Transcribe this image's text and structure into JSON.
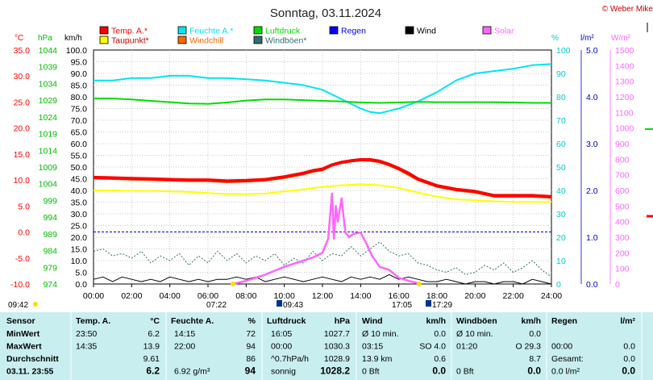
{
  "header": {
    "title": "Sonntag, 03.11.2024",
    "copyright": "© Weber Mike"
  },
  "legend": [
    {
      "label": "Temp. A.*",
      "color": "#ff0000"
    },
    {
      "label": "Feuchte A.*",
      "color": "#00e5ee"
    },
    {
      "label": "Luftdruck",
      "color": "#00dd00"
    },
    {
      "label": "Regen",
      "color": "#0000ff"
    },
    {
      "label": "Wind",
      "color": "#000000"
    },
    {
      "label": "Solar",
      "color": "#ff66ff"
    },
    {
      "label": "Taupunkt*",
      "color": "#ffff00"
    },
    {
      "label": "Windchill",
      "color": "#ff6600"
    },
    {
      "label": "Windböen*",
      "color": "#2f6f6f"
    }
  ],
  "axis_units": {
    "temp": "°C",
    "pressure": "hPa",
    "wind": "km/h",
    "humidity": "%",
    "rain": "l/m²",
    "solar": "W/m²"
  },
  "markers": {
    "sunrise_left": "09:42",
    "sunrise": "07:22",
    "solar_start": "09:43",
    "sunset": "17:05",
    "solar_end": "17:29"
  },
  "chart_data": {
    "type": "line",
    "title": "Sonntag, 03.11.2024",
    "x_ticks": [
      "00:00",
      "02:00",
      "04:00",
      "06:00",
      "08:00",
      "10:00",
      "12:00",
      "14:00",
      "16:00",
      "18:00",
      "20:00",
      "22:00",
      "24:00"
    ],
    "x_range_hours": [
      0,
      24
    ],
    "axes": {
      "temp": {
        "unit": "°C",
        "range": [
          -10,
          35
        ],
        "ticks": [
          "35.0",
          "30.0",
          "25.0",
          "20.0",
          "15.0",
          "10.0",
          "5.0",
          "0.0",
          "-5.0",
          "-10.0"
        ]
      },
      "pressure": {
        "unit": "hPa",
        "range": [
          974,
          1044
        ],
        "ticks": [
          "1044",
          "1039",
          "1034",
          "1029",
          "1024",
          "1019",
          "1014",
          "1009",
          "1004",
          "999",
          "994",
          "989",
          "984",
          "979",
          "974"
        ]
      },
      "wind": {
        "unit": "km/h",
        "range": [
          0,
          100
        ],
        "ticks": [
          "100.0",
          "95.0",
          "90.0",
          "85.0",
          "80.0",
          "75.0",
          "70.0",
          "65.0",
          "60.0",
          "55.0",
          "50.0",
          "45.0",
          "40.0",
          "35.0",
          "30.0",
          "25.0",
          "20.0",
          "15.0",
          "10.0",
          "5.0",
          "0.0"
        ]
      },
      "humidity": {
        "unit": "%",
        "range": [
          0,
          100
        ],
        "ticks": [
          "100",
          "90",
          "80",
          "70",
          "60",
          "50",
          "40",
          "30",
          "20",
          "10",
          "0"
        ]
      },
      "rain": {
        "unit": "l/m²",
        "range": [
          0,
          5
        ],
        "ticks": [
          "5.0",
          "4.0",
          "3.0",
          "2.0",
          "1.0",
          "0.0"
        ]
      },
      "solar": {
        "unit": "W/m²",
        "range": [
          0,
          1500
        ],
        "ticks": [
          "1500",
          "1400",
          "1300",
          "1200",
          "1100",
          "1000",
          "900",
          "800",
          "700",
          "600",
          "500",
          "400",
          "300",
          "200",
          "100",
          "0"
        ]
      }
    },
    "series": [
      {
        "name": "Feuchte A.*",
        "axis": "humidity",
        "color": "#00e5ee",
        "x": [
          0,
          1,
          2,
          3,
          4,
          5,
          6,
          7,
          8,
          9,
          10,
          11,
          12,
          13,
          14,
          14.5,
          15,
          16,
          17,
          18,
          19,
          20,
          21,
          22,
          23,
          24
        ],
        "y": [
          87,
          87,
          88,
          88,
          89,
          89,
          88,
          88,
          87.5,
          87,
          86,
          85,
          83,
          79,
          75,
          73.5,
          73,
          75,
          78,
          82,
          87,
          90,
          91,
          92,
          93.5,
          94
        ]
      },
      {
        "name": "Luftdruck",
        "axis": "pressure",
        "color": "#00dd00",
        "x": [
          0,
          1,
          2,
          3,
          4,
          5,
          6,
          7,
          8,
          9,
          10,
          11,
          12,
          13,
          14,
          15,
          16,
          17,
          18,
          19,
          20,
          21,
          22,
          23,
          24
        ],
        "y": [
          1029.5,
          1029.5,
          1029.2,
          1028.8,
          1028.4,
          1028.0,
          1027.9,
          1028.3,
          1028.9,
          1029.2,
          1029.2,
          1029.0,
          1028.8,
          1028.6,
          1028.3,
          1028.2,
          1028.3,
          1028.5,
          1028.4,
          1028.4,
          1028.4,
          1028.4,
          1028.3,
          1028.2,
          1028.2
        ]
      },
      {
        "name": "Taupunkt*",
        "axis": "temp",
        "color": "#ffff00",
        "x": [
          0,
          1,
          2,
          3,
          4,
          5,
          6,
          7,
          8,
          9,
          10,
          11,
          12,
          13,
          14,
          15,
          16,
          17,
          18,
          19,
          20,
          21,
          22,
          23,
          24
        ],
        "y": [
          8.0,
          8.0,
          7.9,
          7.9,
          7.8,
          7.7,
          7.5,
          7.3,
          7.3,
          7.4,
          7.8,
          8.2,
          8.7,
          9.0,
          9.2,
          9.0,
          8.5,
          7.6,
          6.8,
          6.3,
          6.1,
          5.9,
          5.8,
          5.8,
          5.8
        ]
      },
      {
        "name": "Temp. A.*",
        "axis": "temp",
        "color": "#ff0000",
        "x": [
          0,
          1,
          2,
          3,
          4,
          5,
          6,
          7,
          8,
          9,
          10,
          11,
          11.5,
          12,
          12.5,
          13,
          13.5,
          14,
          14.5,
          15,
          15.5,
          16,
          16.5,
          17,
          18,
          19,
          20,
          21,
          22,
          23,
          24
        ],
        "y": [
          10.5,
          10.4,
          10.3,
          10.2,
          10.1,
          10.0,
          10.0,
          9.8,
          9.9,
          10.1,
          10.6,
          11.3,
          11.8,
          12.1,
          12.9,
          13.4,
          13.7,
          13.9,
          13.9,
          13.6,
          13.0,
          12.2,
          11.3,
          10.2,
          8.9,
          8.2,
          7.8,
          7.0,
          7.0,
          7.0,
          6.8
        ]
      },
      {
        "name": "Windchill",
        "axis": "temp",
        "color": "#ff6600",
        "x": [
          0,
          1,
          2,
          3,
          4,
          5,
          6,
          7,
          8,
          9,
          10,
          11,
          11.5,
          12,
          12.5,
          13,
          13.5,
          14,
          14.5,
          15,
          15.5,
          16,
          16.5,
          17,
          18,
          19,
          20,
          21,
          22,
          23,
          24
        ],
        "y": [
          10.3,
          10.2,
          10.1,
          10.0,
          9.9,
          9.8,
          9.8,
          9.6,
          9.7,
          9.9,
          10.4,
          11.1,
          11.6,
          11.9,
          12.8,
          13.3,
          13.6,
          13.8,
          13.7,
          13.4,
          12.8,
          12.0,
          11.0,
          10.0,
          8.7,
          8.0,
          7.6,
          6.8,
          6.8,
          6.8,
          6.6
        ]
      },
      {
        "name": "Solar",
        "axis": "solar",
        "color": "#ff66ff",
        "x": [
          7.3,
          8,
          9,
          10,
          11,
          11.5,
          12,
          12.3,
          12.5,
          12.6,
          12.7,
          12.8,
          13.0,
          13.2,
          13.4,
          13.6,
          14.0,
          14.3,
          14.6,
          15,
          15.5,
          16,
          16.5,
          17,
          17.2
        ],
        "y": [
          0,
          20,
          60,
          110,
          150,
          170,
          200,
          290,
          580,
          290,
          500,
          400,
          550,
          330,
          300,
          320,
          330,
          260,
          180,
          110,
          90,
          40,
          20,
          5,
          0
        ]
      },
      {
        "name": "Windböen*",
        "axis": "wind",
        "color": "#2f6f6f",
        "x": [
          0,
          0.5,
          1,
          1.5,
          2,
          2.5,
          3,
          3.5,
          4,
          4.5,
          5,
          5.5,
          6,
          6.5,
          7,
          7.5,
          8,
          8.5,
          9,
          9.5,
          10,
          10.5,
          11,
          11.5,
          12,
          12.5,
          13,
          13.5,
          14,
          14.5,
          15,
          15.5,
          16,
          16.5,
          17,
          17.5,
          18,
          18.5,
          19,
          19.5,
          20,
          20.5,
          21,
          21.5,
          22,
          22.5,
          23,
          23.5,
          24
        ],
        "y": [
          14,
          15,
          12,
          13,
          11,
          14,
          9,
          12,
          10,
          13,
          8,
          12,
          9,
          14,
          10,
          13,
          9,
          12,
          10,
          13,
          8,
          11,
          9,
          14,
          10,
          13,
          12,
          16,
          12,
          15,
          18,
          14,
          12,
          13,
          9,
          8,
          6,
          5,
          7,
          4,
          5,
          8,
          6,
          9,
          5,
          7,
          10,
          6,
          3
        ]
      },
      {
        "name": "Wind",
        "axis": "wind",
        "color": "#000000",
        "x": [
          0,
          0.5,
          1,
          1.5,
          2,
          2.5,
          3,
          3.5,
          4,
          4.5,
          5,
          5.5,
          6,
          6.5,
          7,
          7.5,
          8,
          8.5,
          9,
          9.5,
          10,
          10.5,
          11,
          11.5,
          12,
          12.5,
          13,
          13.5,
          14,
          14.5,
          15,
          15.5,
          16,
          16.5,
          17,
          17.5,
          18,
          18.5,
          19,
          19.5,
          20,
          20.5,
          21,
          21.5,
          22,
          22.5,
          23,
          23.5,
          24
        ],
        "y": [
          2,
          3,
          1,
          3,
          2,
          1,
          2,
          1,
          3,
          2,
          1,
          2,
          1,
          2,
          2,
          3,
          2,
          3,
          1,
          2,
          3,
          2,
          1,
          2,
          3,
          2,
          1,
          3,
          2,
          3,
          2,
          4,
          2,
          3,
          2,
          1,
          1,
          2,
          1,
          0,
          1,
          1,
          0,
          1,
          1,
          0,
          2,
          1,
          0
        ]
      }
    ]
  },
  "stats": {
    "col_labels": {
      "sensor": "Sensor",
      "temp": "Temp. A.",
      "temp_unit": "°C",
      "hum": "Feuchte A.",
      "hum_unit": "%",
      "press": "Luftdruck",
      "press_unit": "hPa",
      "wind": "Wind",
      "wind_unit": "km/h",
      "gust": "Windböen",
      "gust_unit": "km/h",
      "rain": "Regen",
      "rain_unit": "l/m²"
    },
    "rows": [
      {
        "label": "MinWert",
        "temp_time": "23:50",
        "temp": "6.2",
        "hum_time": "14:15",
        "hum": "72",
        "press_time": "16:05",
        "press": "1027.7",
        "wind_lbl": "Ø 10 min.",
        "wind": "0.0",
        "gust_lbl": "Ø 10 min.",
        "gust": "0.0",
        "rain_time": "",
        "rain": ""
      },
      {
        "label": "MaxWert",
        "temp_time": "14:35",
        "temp": "13.9",
        "hum_time": "22:00",
        "hum": "94",
        "press_time": "00:00",
        "press": "1030.3",
        "wind_lbl": "03:15",
        "wind": "SO 4.0",
        "gust_lbl": "01:20",
        "gust": "O 29.3",
        "rain_time": "00:00",
        "rain": "0.0"
      },
      {
        "label": "Durchschnitt",
        "temp_time": "",
        "temp": "9.61",
        "hum_time": "",
        "hum": "86",
        "press_time": "^0.7hPa/h",
        "press": "1028.9",
        "wind_lbl": "13.9 km",
        "wind": "0.6",
        "gust_lbl": "",
        "gust": "8.7",
        "rain_time": "Gesamt:",
        "rain": "0.0"
      },
      {
        "label": "03.11. 23:55",
        "temp_time": "",
        "temp": "6.2",
        "hum_time": "6.92 g/m³",
        "hum": "94",
        "press_time": "sonnig",
        "press": "1028.2",
        "wind_lbl": "0 Bft",
        "wind": "0.0",
        "gust_lbl": "0 Bft",
        "gust": "0.0",
        "rain_time": "0.0 l/m²",
        "rain": "0.0"
      }
    ]
  }
}
